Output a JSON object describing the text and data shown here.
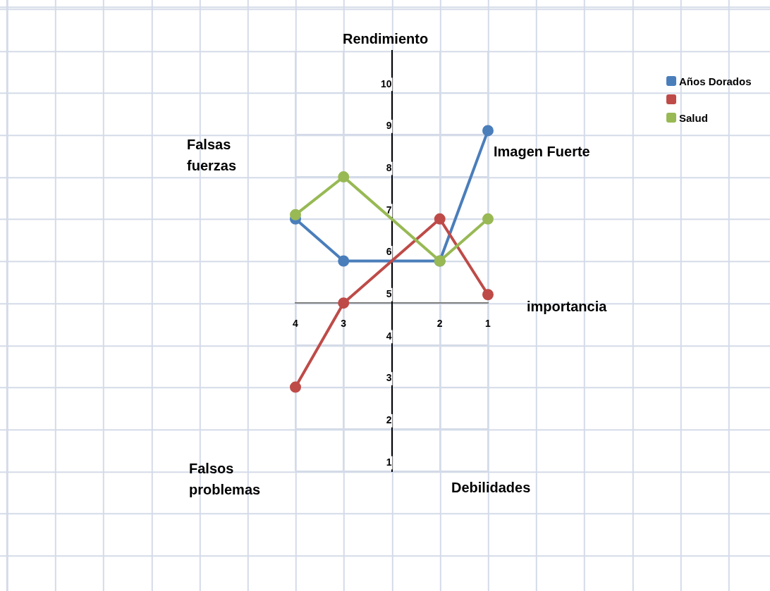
{
  "chart_data": {
    "type": "line",
    "xlabel": "importancia",
    "ylabel": "Rendimiento",
    "categories": [
      "4",
      "3",
      null,
      "2",
      "1"
    ],
    "series": [
      {
        "name": "Años Dorados",
        "color": "#4a7ebb",
        "values": [
          7,
          6,
          null,
          6,
          9.1
        ]
      },
      {
        "color": "#be4b48",
        "values": [
          3,
          5,
          null,
          7,
          5.2
        ]
      },
      {
        "name": "Salud",
        "color": "#98b954",
        "values": [
          7.1,
          8,
          null,
          6,
          7
        ]
      }
    ],
    "ylim": [
      1,
      11
    ],
    "yticks": [
      1,
      2,
      3,
      4,
      5,
      6,
      7,
      8,
      9,
      10
    ],
    "grid": true,
    "legend": "top right",
    "marker": "circle",
    "line_style": "solid",
    "annotations": [
      "Falsas fuerzas",
      "Imagen Fuerte",
      "Falsos problemas",
      "Debilidades"
    ]
  }
}
